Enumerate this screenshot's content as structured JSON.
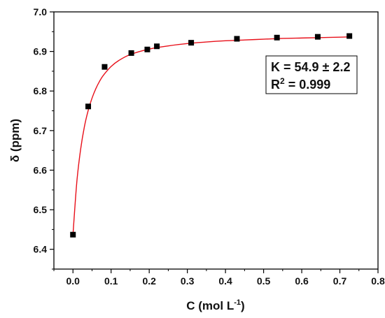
{
  "chart_data": {
    "type": "scatter",
    "xlabel": "C (mol L",
    "xlabel_sup": "-1",
    "xlabel_end": ")",
    "ylabel": "δ (ppm)",
    "xlim": [
      -0.05,
      0.8
    ],
    "ylim": [
      6.35,
      7.0
    ],
    "x_ticks": [
      0.0,
      0.1,
      0.2,
      0.3,
      0.4,
      0.5,
      0.6,
      0.7,
      0.8
    ],
    "x_tick_labels": [
      "0.0",
      "0.1",
      "0.2",
      "0.3",
      "0.4",
      "0.5",
      "0.6",
      "0.7",
      "0.8"
    ],
    "y_ticks": [
      6.4,
      6.5,
      6.6,
      6.7,
      6.8,
      6.9,
      7.0
    ],
    "y_tick_labels": [
      "6.4",
      "6.5",
      "6.6",
      "6.7",
      "6.8",
      "6.9",
      "7.0"
    ],
    "grid": false,
    "series": [
      {
        "marker": "square",
        "color": "#000000",
        "x": [
          0.0,
          0.04,
          0.083,
          0.153,
          0.195,
          0.22,
          0.31,
          0.43,
          0.535,
          0.642,
          0.725
        ],
        "y": [
          6.437,
          6.761,
          6.861,
          6.896,
          6.905,
          6.913,
          6.922,
          6.932,
          6.935,
          6.937,
          6.939
        ]
      }
    ],
    "fit_curve": {
      "color": "#e8101a",
      "x": [
        0.0,
        0.01,
        0.02,
        0.03,
        0.04,
        0.05,
        0.06,
        0.07,
        0.08,
        0.1,
        0.12,
        0.15,
        0.2,
        0.25,
        0.3,
        0.35,
        0.4,
        0.45,
        0.5,
        0.55,
        0.6,
        0.65,
        0.7,
        0.725
      ],
      "y": [
        6.437,
        6.569,
        6.652,
        6.71,
        6.751,
        6.782,
        6.806,
        6.825,
        6.84,
        6.862,
        6.877,
        6.892,
        6.906,
        6.914,
        6.92,
        6.924,
        6.927,
        6.929,
        6.931,
        6.933,
        6.934,
        6.935,
        6.936,
        6.937
      ]
    },
    "annotation": {
      "line1": "K = 54.9 ± 2.2",
      "line2_prefix": "R",
      "line2_sup": "2",
      "line2_suffix": " = 0.999"
    }
  }
}
